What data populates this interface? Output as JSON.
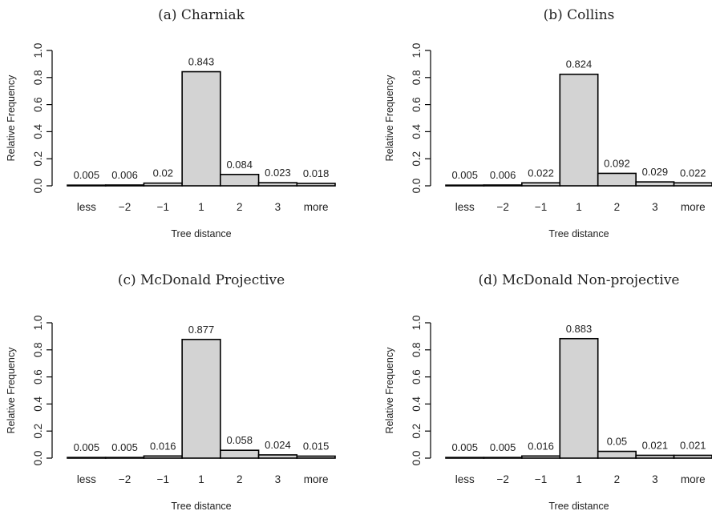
{
  "chart_data": [
    {
      "type": "bar",
      "title": "(a) Charniak",
      "xlabel": "Tree distance",
      "ylabel": "Relative Frequency",
      "ylim": [
        0,
        1
      ],
      "yticks": [
        "0.0",
        "0.2",
        "0.4",
        "0.6",
        "0.8",
        "1.0"
      ],
      "categories": [
        "less",
        "−2",
        "−1",
        "1",
        "2",
        "3",
        "more"
      ],
      "values": [
        0.005,
        0.006,
        0.02,
        0.843,
        0.084,
        0.023,
        0.018
      ],
      "labels": [
        "0.005",
        "0.006",
        "0.02",
        "0.843",
        "0.084",
        "0.023",
        "0.018"
      ]
    },
    {
      "type": "bar",
      "title": "(b) Collins",
      "xlabel": "Tree distance",
      "ylabel": "Relative Frequency",
      "ylim": [
        0,
        1
      ],
      "yticks": [
        "0.0",
        "0.2",
        "0.4",
        "0.6",
        "0.8",
        "1.0"
      ],
      "categories": [
        "less",
        "−2",
        "−1",
        "1",
        "2",
        "3",
        "more"
      ],
      "values": [
        0.005,
        0.006,
        0.022,
        0.824,
        0.092,
        0.029,
        0.022
      ],
      "labels": [
        "0.005",
        "0.006",
        "0.022",
        "0.824",
        "0.092",
        "0.029",
        "0.022"
      ]
    },
    {
      "type": "bar",
      "title": "(c) McDonald Projective",
      "xlabel": "Tree distance",
      "ylabel": "Relative Frequency",
      "ylim": [
        0,
        1
      ],
      "yticks": [
        "0.0",
        "0.2",
        "0.4",
        "0.6",
        "0.8",
        "1.0"
      ],
      "categories": [
        "less",
        "−2",
        "−1",
        "1",
        "2",
        "3",
        "more"
      ],
      "values": [
        0.005,
        0.005,
        0.016,
        0.877,
        0.058,
        0.024,
        0.015
      ],
      "labels": [
        "0.005",
        "0.005",
        "0.016",
        "0.877",
        "0.058",
        "0.024",
        "0.015"
      ]
    },
    {
      "type": "bar",
      "title": "(d) McDonald Non-projective",
      "xlabel": "Tree distance",
      "ylabel": "Relative Frequency",
      "ylim": [
        0,
        1
      ],
      "yticks": [
        "0.0",
        "0.2",
        "0.4",
        "0.6",
        "0.8",
        "1.0"
      ],
      "categories": [
        "less",
        "−2",
        "−1",
        "1",
        "2",
        "3",
        "more"
      ],
      "values": [
        0.005,
        0.005,
        0.016,
        0.883,
        0.05,
        0.021,
        0.021
      ],
      "labels": [
        "0.005",
        "0.005",
        "0.016",
        "0.883",
        "0.05",
        "0.021",
        "0.021"
      ]
    }
  ]
}
